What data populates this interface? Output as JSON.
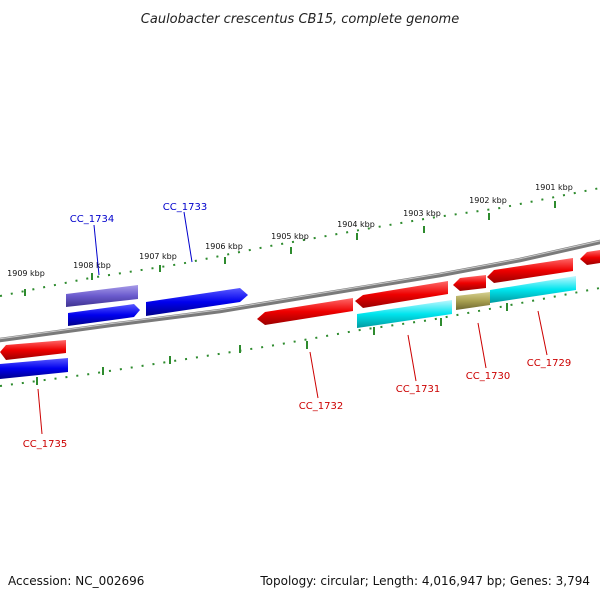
{
  "title": "Caulobacter crescentus CB15, complete genome",
  "footer": {
    "accession": "Accession: NC_002696",
    "topology": "Topology: circular; Length: 4,016,947 bp; Genes: 3,794"
  },
  "scale_labels": [
    "1909 kbp",
    "1908 kbp",
    "1907 kbp",
    "1906 kbp",
    "1905 kbp",
    "1904 kbp",
    "1903 kbp",
    "1902 kbp",
    "1901 kbp"
  ],
  "gene_labels": [
    {
      "id": "CC_1734",
      "strand": "plus",
      "color": "#0000cc"
    },
    {
      "id": "CC_1733",
      "strand": "plus",
      "color": "#0000cc"
    },
    {
      "id": "CC_1735",
      "strand": "minus",
      "color": "#cc0000"
    },
    {
      "id": "CC_1732",
      "strand": "minus",
      "color": "#cc0000"
    },
    {
      "id": "CC_1731",
      "strand": "minus",
      "color": "#cc0000"
    },
    {
      "id": "CC_1730",
      "strand": "minus",
      "color": "#cc0000"
    },
    {
      "id": "CC_1729",
      "strand": "minus",
      "color": "#cc0000"
    }
  ],
  "colors": {
    "backbone": "#7a7a7a",
    "tick": "#2e8b2e",
    "forward_cds": "#0000ee",
    "reverse_cds": "#ee0000",
    "forward_other": "#6a5acd",
    "reverse_other": "#00e5ee",
    "misc_feature": "#a8a050"
  }
}
